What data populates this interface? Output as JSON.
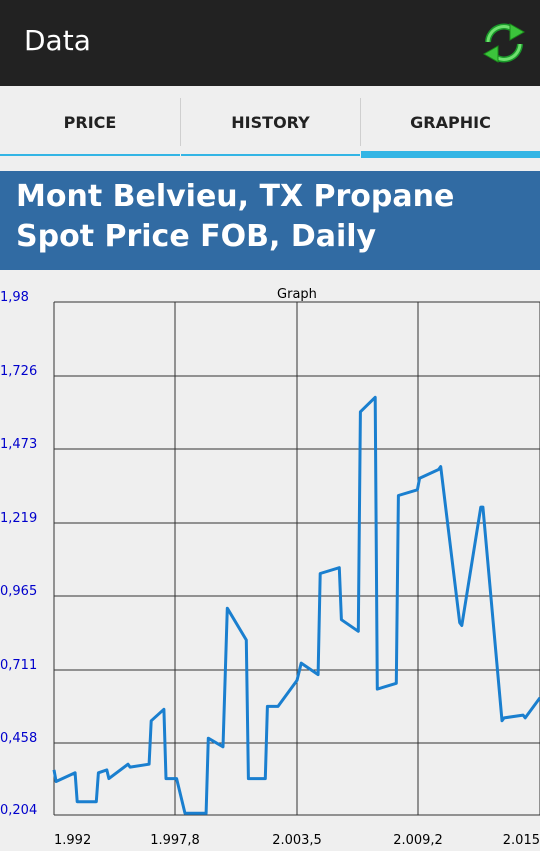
{
  "app": {
    "title": "Data"
  },
  "tabs": [
    {
      "label": "PRICE",
      "active": false
    },
    {
      "label": "HISTORY",
      "active": false
    },
    {
      "label": "GRAPHIC",
      "active": true
    }
  ],
  "header": {
    "title": "Mont Belvieu, TX Propane Spot Price FOB, Daily"
  },
  "colors": {
    "accent": "#33b5e5",
    "header": "#316ba3",
    "series": "#1a7fcf",
    "axis_labels": "#0000cc"
  },
  "icons": {
    "refresh": "refresh-icon"
  },
  "chart_data": {
    "type": "line",
    "title": "Graph",
    "x_tick_labels": [
      "1.992",
      "1.997,8",
      "2.003,5",
      "2.009,2",
      "2.015"
    ],
    "y_tick_labels": [
      "1,98",
      "1,726",
      "1,473",
      "1,219",
      "0,965",
      "0,711",
      "0,458",
      "0,204"
    ],
    "xlim": [
      1992,
      2015
    ],
    "ylim": [
      0.204,
      1.98
    ],
    "grid": true,
    "series": [
      {
        "x": [
          1992,
          1992.1,
          1993,
          1993.1,
          1994,
          1994.1,
          1994.5,
          1994.6,
          1995.5,
          1995.6,
          1996.5,
          1996.6,
          1997.2,
          1997.3,
          1997.8,
          1998.2,
          1998.3,
          1999.2,
          1999.3,
          2000,
          2000.2,
          2001.1,
          2001.2,
          2002,
          2002.1,
          2002.6,
          2002.7,
          2003.5,
          2003.7,
          2004.5,
          2004.6,
          2005.5,
          2005.6,
          2006.4,
          2006.5,
          2007.2,
          2007.3,
          2008.2,
          2008.3,
          2009.2,
          2009.3,
          2010.2,
          2010.3,
          2011.2,
          2011.3,
          2012.2,
          2012.3,
          2013.2,
          2013.3,
          2014.2,
          2014.3,
          2015
        ],
        "y": [
          0.36,
          0.32,
          0.35,
          0.25,
          0.25,
          0.35,
          0.36,
          0.33,
          0.38,
          0.37,
          0.38,
          0.53,
          0.57,
          0.33,
          0.33,
          0.21,
          0.21,
          0.21,
          0.47,
          0.44,
          0.92,
          0.81,
          0.33,
          0.33,
          0.58,
          0.58,
          0.59,
          0.67,
          0.73,
          0.69,
          1.04,
          1.06,
          0.88,
          0.84,
          1.6,
          1.65,
          0.64,
          0.66,
          1.31,
          1.33,
          1.37,
          1.4,
          1.41,
          0.87,
          0.86,
          1.27,
          1.27,
          0.53,
          0.54,
          0.55,
          0.54,
          0.61
        ]
      }
    ]
  }
}
